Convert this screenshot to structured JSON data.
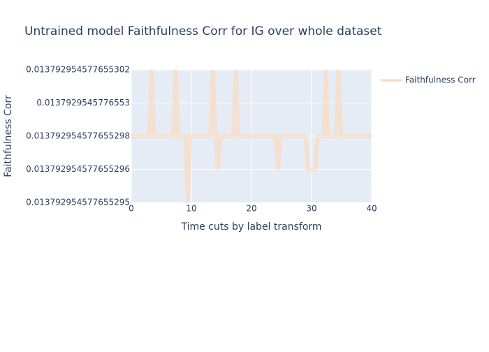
{
  "chart_data": {
    "type": "line",
    "title": "Untrained model Faithfulness Corr for IG over whole dataset",
    "x_label": "Time cuts by label transform",
    "y_label": "Faithfulness Corr",
    "x": [
      0,
      3,
      3.4,
      3.8,
      7,
      7.4,
      7.8,
      9,
      9.4,
      9.8,
      13.2,
      13.6,
      14.0,
      14.4,
      14.8,
      17.0,
      17.4,
      17.8,
      24.0,
      24.4,
      24.8,
      29.0,
      29.4,
      30.6,
      31.0,
      32.0,
      32.4,
      32.8,
      34.1,
      34.5,
      34.9,
      40
    ],
    "series": [
      {
        "name": "Faithfulness Corr",
        "color": "#fdd8b8",
        "values": [
          0.013792954577655298,
          0.013792954577655298,
          0.013792954577655302,
          0.013792954577655298,
          0.013792954577655298,
          0.013792954577655302,
          0.013792954577655298,
          0.013792954577655298,
          0.013792954577655295,
          0.013792954577655298,
          0.013792954577655298,
          0.013792954577655302,
          0.013792954577655298,
          0.013792954577655296,
          0.013792954577655298,
          0.013792954577655298,
          0.013792954577655302,
          0.013792954577655298,
          0.013792954577655298,
          0.013792954577655296,
          0.013792954577655298,
          0.013792954577655298,
          0.013792954577655296,
          0.013792954577655296,
          0.013792954577655298,
          0.013792954577655298,
          0.013792954577655302,
          0.013792954577655298,
          0.013792954577655298,
          0.013792954577655302,
          0.013792954577655298,
          0.013792954577655298
        ]
      }
    ],
    "xlim": [
      0,
      40
    ],
    "xticks": [
      0,
      10,
      20,
      30,
      40
    ],
    "ylim": [
      0.013792954577655295,
      0.013792954577655302
    ],
    "yticks": [
      {
        "value": 0.013792954577655295,
        "label": "0.013792954577655295"
      },
      {
        "value": 0.013792954577655296,
        "label": "0.013792954577655296"
      },
      {
        "value": 0.013792954577655298,
        "label": "0.013792954577655298"
      },
      {
        "value": 0.0137929545776553,
        "label": "0.0137929545776553"
      },
      {
        "value": 0.013792954577655302,
        "label": "0.013792954577655302"
      }
    ],
    "grid": true,
    "legend": "right"
  }
}
